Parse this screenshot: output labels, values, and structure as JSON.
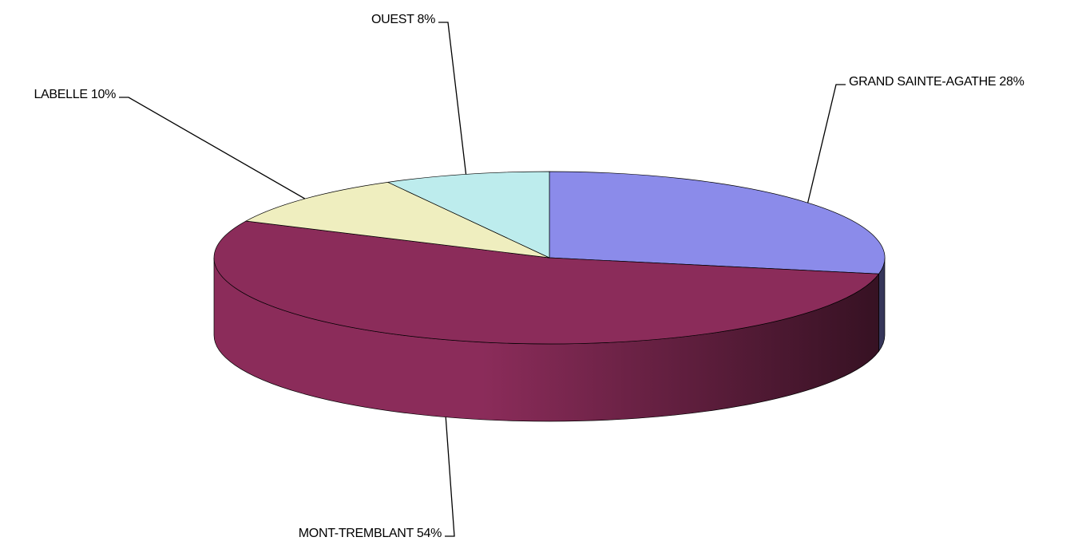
{
  "chart_data": {
    "type": "pie3d",
    "values": [
      28,
      54,
      10,
      8
    ],
    "value_labels": [
      "GRAND SAINTE-AGATHE 28%",
      "MONT-TREMBLANT 54%",
      "LABELLE 10%",
      "OUEST 8%"
    ],
    "colors": [
      "#8b8bea",
      "#8b2c5a",
      "#efeebf",
      "#bdeced"
    ]
  }
}
